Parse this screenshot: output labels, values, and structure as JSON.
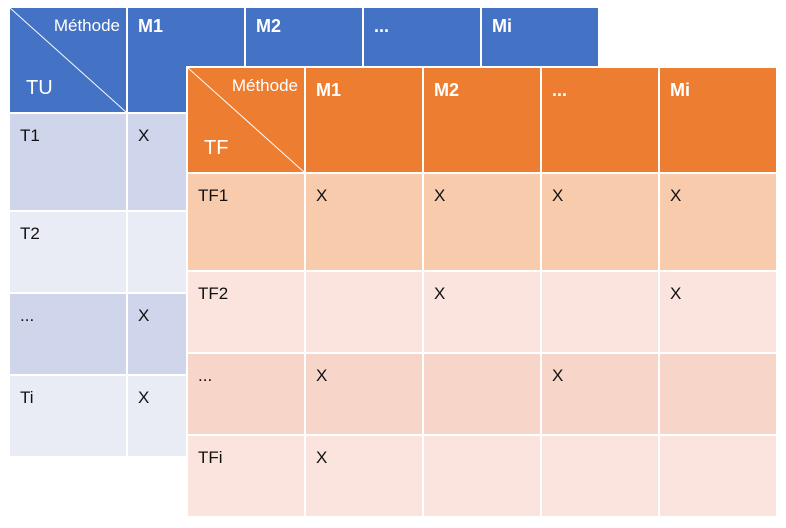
{
  "tu_table": {
    "corner_top": "Méthode",
    "corner_bottom": "TU",
    "headers": [
      "M1",
      "M2",
      "...",
      "Mi"
    ],
    "rows": [
      {
        "label": "T1",
        "cells": [
          "X",
          "",
          "",
          ""
        ]
      },
      {
        "label": "T2",
        "cells": [
          "",
          "",
          "",
          ""
        ]
      },
      {
        "label": "...",
        "cells": [
          "X",
          "",
          "",
          ""
        ]
      },
      {
        "label": "Ti",
        "cells": [
          "X",
          "",
          "",
          ""
        ]
      }
    ]
  },
  "tf_table": {
    "corner_top": "Méthode",
    "corner_bottom": "TF",
    "headers": [
      "M1",
      "M2",
      "...",
      "Mi"
    ],
    "rows": [
      {
        "label": "TF1",
        "cells": [
          "X",
          "X",
          "X",
          "X"
        ]
      },
      {
        "label": "TF2",
        "cells": [
          "",
          "X",
          "",
          "X"
        ]
      },
      {
        "label": "...",
        "cells": [
          "X",
          "",
          "X",
          ""
        ]
      },
      {
        "label": "TFi",
        "cells": [
          "X",
          "",
          "",
          ""
        ]
      }
    ]
  },
  "colors": {
    "tu_header": "#4472c4",
    "tu_row_dark": "#cfd5ea",
    "tu_row_light": "#e9ebf5",
    "tf_header": "#ed7d31",
    "tf_row_dark": "#f8cbad",
    "tf_row_light": "#fbe4dd"
  }
}
